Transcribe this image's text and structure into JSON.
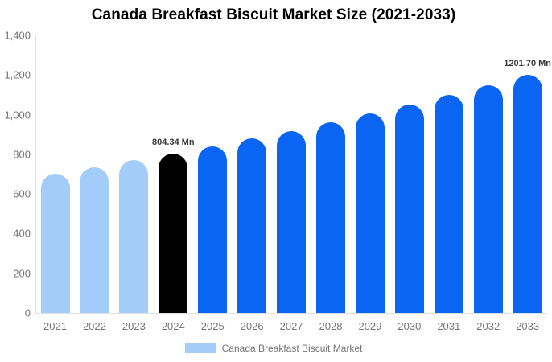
{
  "chart_data": {
    "type": "bar",
    "title": "Canada Breakfast Biscuit Market Size (2021-2033)",
    "xlabel": "",
    "ylabel": "",
    "categories": [
      "2021",
      "2022",
      "2023",
      "2024",
      "2025",
      "2026",
      "2027",
      "2028",
      "2029",
      "2030",
      "2031",
      "2032",
      "2033"
    ],
    "values": [
      704,
      736,
      769,
      804.34,
      841,
      879,
      919,
      961,
      1005,
      1051,
      1099,
      1149,
      1201.7
    ],
    "bar_colors": [
      "#A3CDF8",
      "#A3CDF8",
      "#A3CDF8",
      "#000000",
      "#0A66F2",
      "#0A66F2",
      "#0A66F2",
      "#0A66F2",
      "#0A66F2",
      "#0A66F2",
      "#0A66F2",
      "#0A66F2",
      "#0A66F2"
    ],
    "bar_value_labels": [
      "",
      "",
      "",
      "804.34 Mn",
      "",
      "",
      "",
      "",
      "",
      "",
      "",
      "",
      "1201.70 Mn"
    ],
    "ylim": [
      0,
      1400
    ],
    "ytick_labels": [
      "0",
      "200",
      "400",
      "600",
      "800",
      "1,000",
      "1,200",
      "1,400"
    ],
    "grid": false,
    "legend": {
      "position": "bottom",
      "label": "Canada Breakfast Biscuit Market",
      "swatch_color": "#A3CDF8"
    },
    "colors": {
      "series_past": "#A3CDF8",
      "series_base_year": "#000000",
      "series_forecast": "#0A66F2",
      "axis_line": "#e0e0e0",
      "tick_text": "#757575",
      "title_text": "#000000",
      "value_label_text": "#3a3a3a"
    }
  }
}
